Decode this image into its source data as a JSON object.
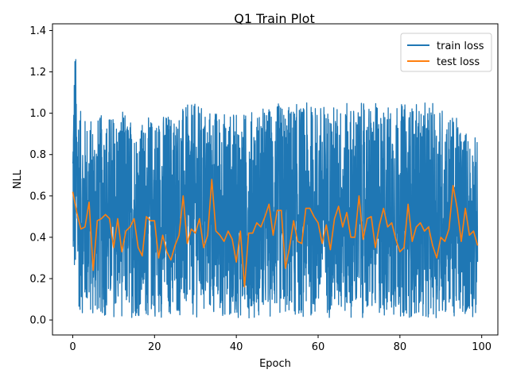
{
  "chart_data": {
    "type": "line",
    "title": "Q1 Train Plot",
    "xlabel": "Epoch",
    "ylabel": "NLL",
    "xlim": [
      -4.95,
      103.95
    ],
    "ylim": [
      -0.0725,
      1.4325
    ],
    "xticks": [
      0,
      20,
      40,
      60,
      80,
      100
    ],
    "xtick_labels": [
      "0",
      "20",
      "40",
      "60",
      "80",
      "100"
    ],
    "yticks": [
      0.0,
      0.2,
      0.4,
      0.6,
      0.8,
      1.0,
      1.2,
      1.4
    ],
    "ytick_labels": [
      "0.0",
      "0.2",
      "0.4",
      "0.6",
      "0.8",
      "1.0",
      "1.2",
      "1.4"
    ],
    "grid": false,
    "legend_position": "top-right",
    "series": [
      {
        "name": "train loss",
        "color": "#1f77b4",
        "noisy": true,
        "x_range": [
          0,
          99
        ],
        "envelope_x": [
          0,
          0.5,
          1,
          2,
          4,
          8,
          12,
          16,
          20,
          30,
          40,
          50,
          60,
          70,
          80,
          90,
          99
        ],
        "envelope_high": [
          1.05,
          1.36,
          1.22,
          1.0,
          0.98,
          1.0,
          1.02,
          0.95,
          1.0,
          1.05,
          1.0,
          1.05,
          1.05,
          1.05,
          1.05,
          1.05,
          0.88
        ],
        "envelope_low": [
          0.22,
          0.12,
          0.06,
          0.03,
          0.01,
          0.01,
          0.01,
          0.01,
          0.01,
          0.01,
          0.01,
          0.01,
          0.01,
          0.01,
          0.01,
          0.01,
          0.01
        ]
      },
      {
        "name": "test loss",
        "color": "#ff7f0e",
        "x": [
          0,
          1,
          2,
          3,
          4,
          5,
          6,
          7,
          8,
          9,
          10,
          11,
          12,
          13,
          14,
          15,
          16,
          17,
          18,
          19,
          20,
          21,
          22,
          23,
          24,
          25,
          26,
          27,
          28,
          29,
          30,
          31,
          32,
          33,
          34,
          35,
          36,
          37,
          38,
          39,
          40,
          41,
          42,
          43,
          44,
          45,
          46,
          47,
          48,
          49,
          50,
          51,
          52,
          53,
          54,
          55,
          56,
          57,
          58,
          59,
          60,
          61,
          62,
          63,
          64,
          65,
          66,
          67,
          68,
          69,
          70,
          71,
          72,
          73,
          74,
          75,
          76,
          77,
          78,
          79,
          80,
          81,
          82,
          83,
          84,
          85,
          86,
          87,
          88,
          89,
          90,
          91,
          92,
          93,
          94,
          95,
          96,
          97,
          98,
          99
        ],
        "values": [
          0.62,
          0.52,
          0.44,
          0.45,
          0.57,
          0.24,
          0.48,
          0.49,
          0.51,
          0.49,
          0.35,
          0.49,
          0.33,
          0.43,
          0.45,
          0.49,
          0.35,
          0.31,
          0.5,
          0.48,
          0.48,
          0.3,
          0.41,
          0.33,
          0.29,
          0.36,
          0.41,
          0.6,
          0.37,
          0.44,
          0.42,
          0.49,
          0.35,
          0.41,
          0.68,
          0.43,
          0.41,
          0.38,
          0.43,
          0.39,
          0.28,
          0.43,
          0.16,
          0.42,
          0.42,
          0.47,
          0.45,
          0.5,
          0.56,
          0.41,
          0.53,
          0.53,
          0.25,
          0.35,
          0.48,
          0.38,
          0.37,
          0.54,
          0.54,
          0.5,
          0.47,
          0.37,
          0.46,
          0.34,
          0.49,
          0.55,
          0.45,
          0.52,
          0.4,
          0.4,
          0.6,
          0.39,
          0.49,
          0.5,
          0.35,
          0.46,
          0.54,
          0.45,
          0.47,
          0.39,
          0.33,
          0.35,
          0.56,
          0.38,
          0.45,
          0.47,
          0.43,
          0.45,
          0.36,
          0.3,
          0.4,
          0.38,
          0.44,
          0.65,
          0.54,
          0.38,
          0.54,
          0.41,
          0.43,
          0.36
        ]
      }
    ]
  }
}
